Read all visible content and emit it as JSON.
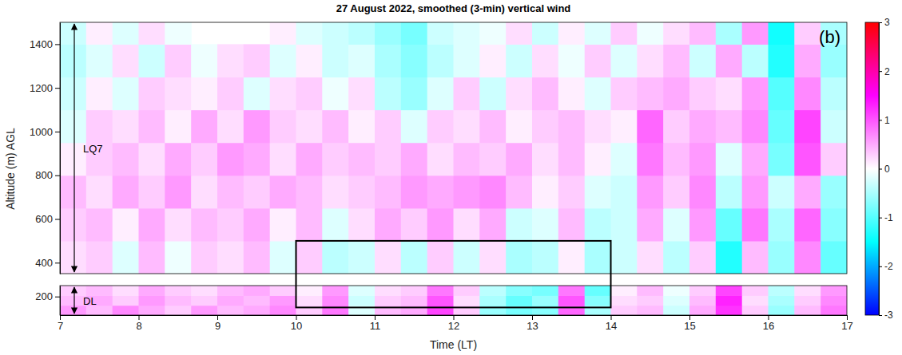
{
  "chart_data": {
    "type": "heatmap",
    "title": "27 August 2022, smoothed (3-min) vertical wind",
    "panel_label": "(b)",
    "xlabel": "Time (LT)",
    "ylabel": "Altitude (m) AGL",
    "xlim": [
      7,
      17
    ],
    "xticks": [
      7,
      8,
      9,
      10,
      11,
      12,
      13,
      14,
      15,
      16,
      17
    ],
    "x_edges": [
      7,
      7.333,
      7.667,
      8,
      8.333,
      8.667,
      9,
      9.333,
      9.667,
      10,
      10.333,
      10.667,
      11,
      11.333,
      11.667,
      12,
      12.333,
      12.667,
      13,
      13.333,
      13.667,
      14,
      14.333,
      14.667,
      15,
      15.333,
      15.667,
      16,
      16.333,
      16.667,
      17
    ],
    "panels": [
      {
        "label": "LQ7",
        "ylim": [
          350,
          1500
        ],
        "yticks": [
          400,
          600,
          800,
          1000,
          1200,
          1400
        ],
        "y_edges": [
          350,
          500,
          650,
          800,
          950,
          1100,
          1250,
          1400,
          1500
        ],
        "values": [
          [
            0.2,
            0.3,
            -0.2,
            0.4,
            -0.1,
            0.3,
            0.2,
            0.4,
            -0.2,
            0.3,
            -0.4,
            -0.3,
            0.2,
            -0.4,
            0.3,
            -0.3,
            0.2,
            -0.5,
            -0.4,
            0.1,
            -0.5,
            -0.3,
            0.2,
            -0.4,
            0.3,
            -1.3,
            0.4,
            -0.6,
            0.7,
            -0.9
          ],
          [
            0.3,
            0.4,
            0.1,
            0.5,
            0.2,
            0.4,
            0.3,
            0.5,
            0.1,
            0.4,
            -0.2,
            0.2,
            0.5,
            0.3,
            0.6,
            0.2,
            0.5,
            -0.3,
            -0.2,
            0.4,
            -0.4,
            -0.3,
            0.5,
            -0.2,
            0.6,
            -0.9,
            0.8,
            -0.5,
            0.9,
            -0.7
          ],
          [
            0.4,
            0.2,
            0.5,
            0.3,
            0.6,
            0.2,
            0.4,
            0.3,
            0.5,
            0.4,
            0.2,
            0.3,
            0.4,
            0.6,
            0.5,
            0.6,
            0.7,
            0.4,
            0.1,
            0.3,
            -0.2,
            -0.3,
            0.6,
            0.3,
            0.7,
            -0.4,
            0.6,
            -0.3,
            0.5,
            -0.6
          ],
          [
            0.1,
            0.3,
            0.4,
            0.2,
            0.5,
            0.3,
            0.6,
            0.5,
            0.2,
            0.5,
            0.3,
            0.4,
            0.3,
            0.5,
            0.2,
            0.4,
            0.3,
            0.5,
            0.2,
            0.4,
            0.1,
            -0.2,
            0.8,
            0.4,
            0.6,
            -0.2,
            0.5,
            -0.8,
            1.0,
            0.3
          ],
          [
            -0.2,
            0.3,
            0.2,
            0.4,
            0.1,
            0.5,
            0.2,
            0.6,
            0.3,
            0.2,
            0.4,
            0.1,
            0.3,
            -0.2,
            0.3,
            0.2,
            0.4,
            0.1,
            0.3,
            0.4,
            0.2,
            0.1,
            0.9,
            0.3,
            0.5,
            0.4,
            0.7,
            -0.9,
            1.1,
            -0.3
          ],
          [
            -0.3,
            0.1,
            -0.2,
            0.3,
            0.2,
            0.1,
            0.3,
            -0.2,
            0.2,
            0.3,
            -0.1,
            0.2,
            -0.4,
            -0.6,
            -0.2,
            0.3,
            -0.3,
            0.2,
            0.4,
            0.1,
            -0.2,
            0.3,
            0.4,
            0.5,
            0.3,
            0.2,
            0.6,
            -1.0,
            0.7,
            -0.4
          ],
          [
            -0.4,
            -0.2,
            0.2,
            -0.3,
            0.3,
            -0.1,
            0.2,
            0.3,
            -0.2,
            0.1,
            -0.3,
            -0.2,
            -0.5,
            -0.7,
            -0.4,
            -0.2,
            0.1,
            -0.3,
            0.2,
            -0.1,
            0.3,
            -0.2,
            0.2,
            0.4,
            -0.3,
            0.5,
            -0.4,
            -1.3,
            0.5,
            -0.6
          ],
          [
            -0.3,
            0.1,
            -0.2,
            0.2,
            -0.1,
            null,
            null,
            null,
            0.1,
            -0.2,
            -0.3,
            -0.4,
            -0.6,
            -0.8,
            -0.3,
            -0.2,
            -0.1,
            0.2,
            -0.3,
            0.1,
            -0.2,
            0.3,
            -0.1,
            0.2,
            0.4,
            -0.5,
            0.6,
            -1.4,
            0.3,
            -0.5
          ]
        ]
      },
      {
        "label": "DL",
        "ylim": [
          30,
          300
        ],
        "yticks": [
          200
        ],
        "y_edges": [
          30,
          120,
          210,
          300
        ],
        "values": [
          [
            0.6,
            0.4,
            0.7,
            0.5,
            0.3,
            0.6,
            0.4,
            0.5,
            0.7,
            0.3,
            0.8,
            -0.2,
            0.4,
            0.5,
            1.1,
            0.3,
            -0.6,
            -0.8,
            -0.7,
            0.9,
            -0.5,
            0.3,
            0.4,
            -0.3,
            0.5,
            1.2,
            0.3,
            -0.6,
            0.4,
            0.8
          ],
          [
            0.4,
            0.5,
            0.3,
            0.6,
            0.4,
            0.3,
            0.5,
            0.4,
            0.6,
            0.2,
            0.7,
            -0.3,
            0.3,
            0.4,
            1.0,
            0.2,
            -0.5,
            -0.9,
            -0.6,
            1.0,
            -0.7,
            0.2,
            0.3,
            -0.2,
            0.4,
            1.3,
            0.2,
            -0.5,
            0.3,
            0.7
          ],
          [
            0.3,
            0.4,
            0.2,
            0.5,
            0.3,
            0.2,
            0.4,
            0.5,
            0.3,
            0.1,
            0.6,
            -0.2,
            0.2,
            0.3,
            0.8,
            0.3,
            -0.4,
            -0.7,
            -0.8,
            0.8,
            -0.9,
            0.1,
            0.4,
            -0.1,
            0.3,
            1.1,
            0.3,
            -0.4,
            0.2,
            0.6
          ]
        ]
      }
    ],
    "box": {
      "x": [
        10,
        14
      ],
      "y": [
        100,
        500
      ]
    },
    "colorbar": {
      "lim": [
        -3,
        3
      ],
      "ticks": [
        -3,
        -2,
        -1,
        0,
        1,
        2,
        3
      ],
      "colors": [
        "#0000ff",
        "#00ffff",
        "#ffffff",
        "#ff00ff",
        "#ff0000"
      ]
    }
  }
}
